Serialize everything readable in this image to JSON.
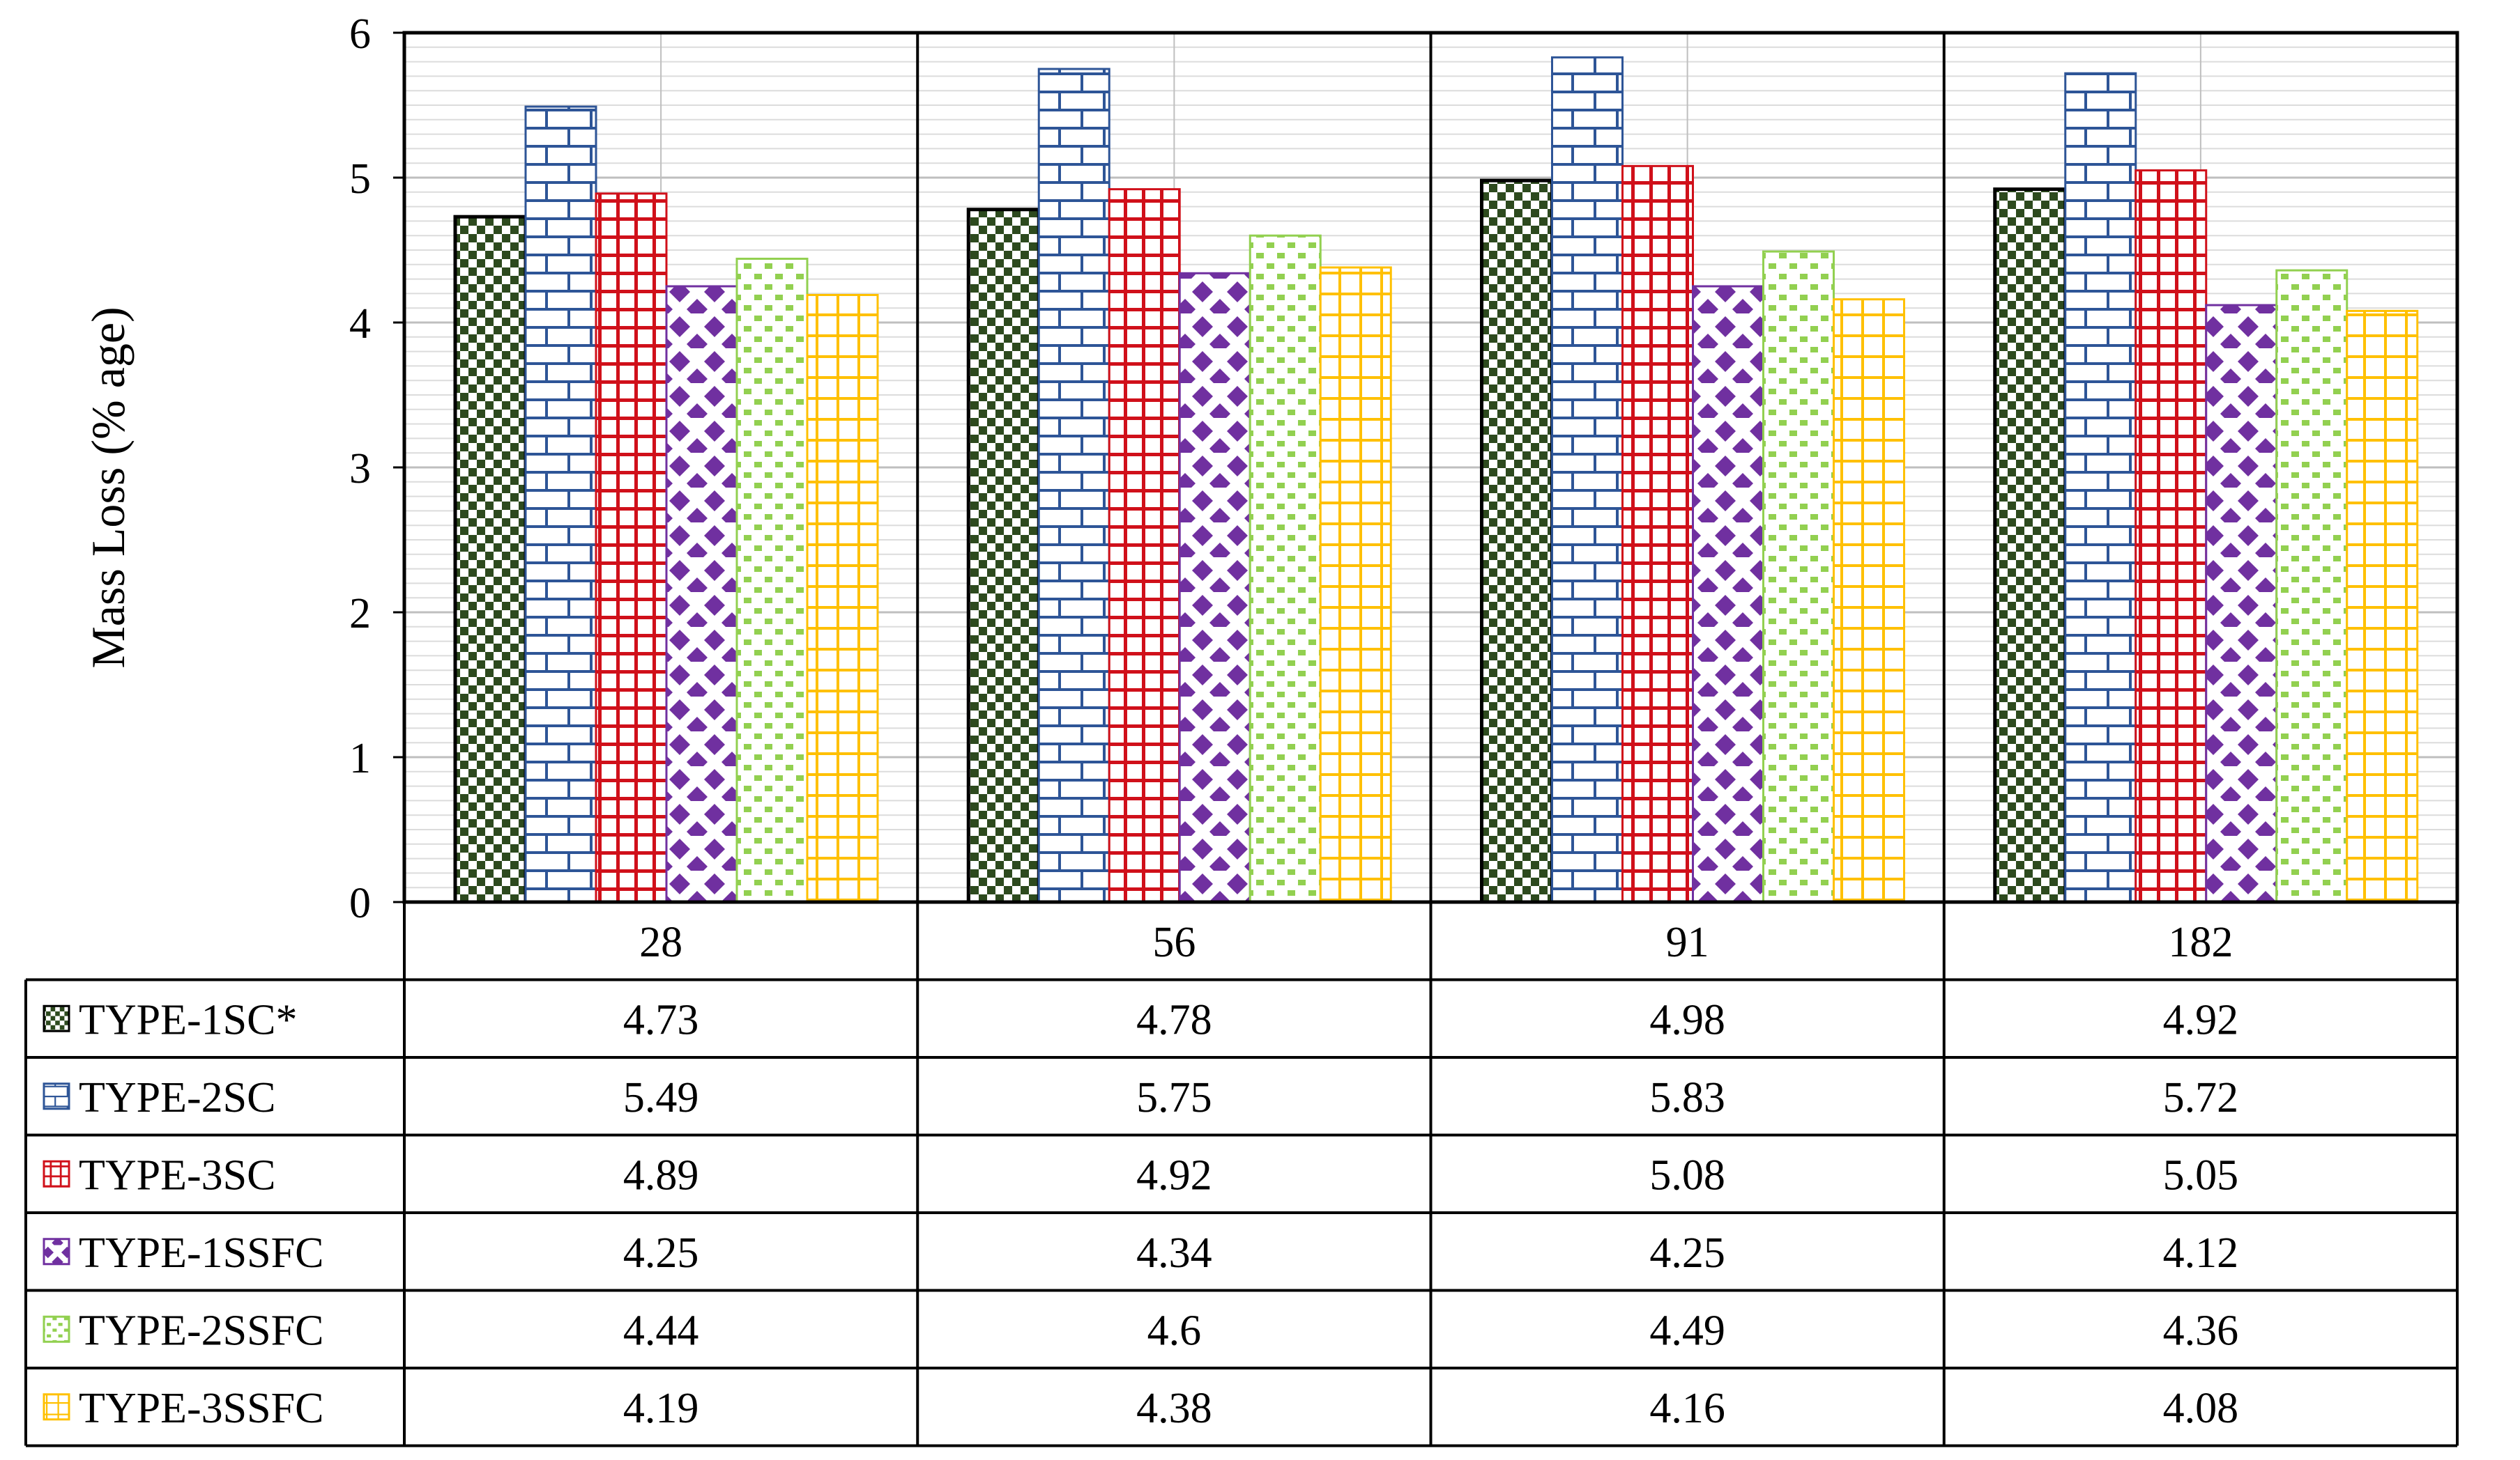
{
  "colors": {
    "TYPE-1SC*": "#2d4a1e",
    "TYPE-2SC": "#2e5597",
    "TYPE-3SC": "#d0101a",
    "TYPE-1SSFC": "#7030a0",
    "TYPE-2SSFC": "#92d050",
    "TYPE-3SSFC": "#ffc000"
  },
  "chart_data": {
    "type": "bar",
    "ylabel": "Mass Loss (% age)",
    "xlabel": "",
    "ylim": [
      0,
      6
    ],
    "yticks": [
      "0",
      "1",
      "2",
      "3",
      "4",
      "5",
      "6"
    ],
    "grid": true,
    "legend_placement": "data-table-left",
    "categories": [
      "28",
      "56",
      "91",
      "182"
    ],
    "series": [
      {
        "name": "TYPE-1SC*",
        "values": [
          4.73,
          4.78,
          4.98,
          4.92
        ],
        "labels": [
          "4.73",
          "4.78",
          "4.98",
          "4.92"
        ],
        "pattern": "checker-icon"
      },
      {
        "name": "TYPE-2SC",
        "values": [
          5.49,
          5.75,
          5.83,
          5.72
        ],
        "labels": [
          "5.49",
          "5.75",
          "5.83",
          "5.72"
        ],
        "pattern": "brick-icon"
      },
      {
        "name": "TYPE-3SC",
        "values": [
          4.89,
          4.92,
          5.08,
          5.05
        ],
        "labels": [
          "4.89",
          "4.92",
          "5.08",
          "5.05"
        ],
        "pattern": "grid-icon"
      },
      {
        "name": "TYPE-1SSFC",
        "values": [
          4.25,
          4.34,
          4.25,
          4.12
        ],
        "labels": [
          "4.25",
          "4.34",
          "4.25",
          "4.12"
        ],
        "pattern": "diamond-icon"
      },
      {
        "name": "TYPE-2SSFC",
        "values": [
          4.44,
          4.6,
          4.49,
          4.36
        ],
        "labels": [
          "4.44",
          "4.6",
          "4.49",
          "4.36"
        ],
        "pattern": "dotted-squares-icon"
      },
      {
        "name": "TYPE-3SSFC",
        "values": [
          4.19,
          4.38,
          4.16,
          4.08
        ],
        "labels": [
          "4.19",
          "4.38",
          "4.16",
          "4.08"
        ],
        "pattern": "cross-grid-icon"
      }
    ]
  }
}
